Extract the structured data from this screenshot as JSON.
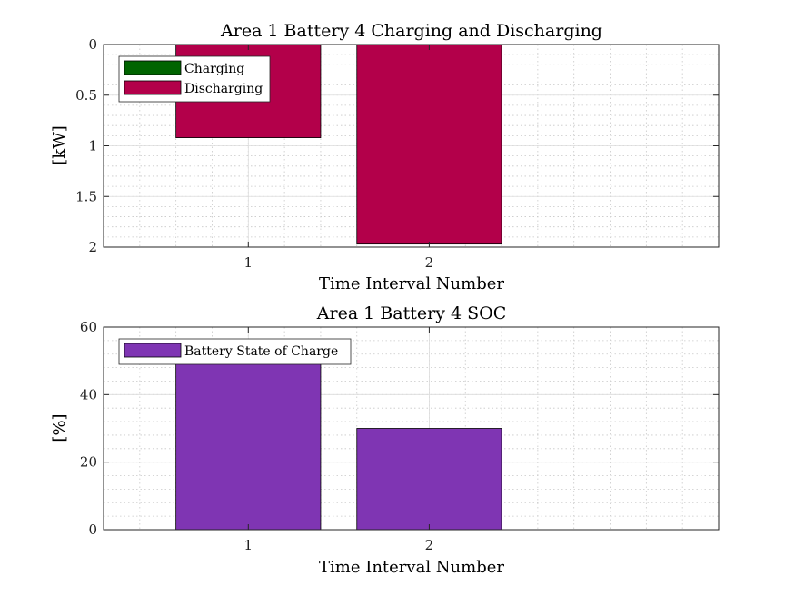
{
  "chart_data": [
    {
      "type": "bar",
      "title": "Area 1 Battery 4 Charging and Discharging",
      "xlabel": "Time Interval Number",
      "ylabel": "[kW]",
      "categories": [
        "1",
        "2"
      ],
      "ylim": [
        0,
        2
      ],
      "y_reversed": true,
      "yticks": [
        "0",
        "0.5",
        "1",
        "1.5",
        "2"
      ],
      "grid": true,
      "minor_grid": true,
      "legend_position": "top-left",
      "series": [
        {
          "name": "Charging",
          "color": "#006400",
          "values": [
            0,
            0
          ]
        },
        {
          "name": "Discharging",
          "color": "#b3004a",
          "values": [
            0.92,
            1.97
          ]
        }
      ]
    },
    {
      "type": "bar",
      "title": "Area 1 Battery 4 SOC",
      "xlabel": "Time Interval Number",
      "ylabel": "[%]",
      "categories": [
        "1",
        "2"
      ],
      "ylim": [
        0,
        60
      ],
      "y_reversed": false,
      "yticks": [
        "0",
        "20",
        "40",
        "60"
      ],
      "grid": true,
      "minor_grid": true,
      "legend_position": "top-left",
      "series": [
        {
          "name": "Battery State of Charge",
          "color": "#7f35b3",
          "values": [
            52,
            30
          ]
        }
      ]
    }
  ]
}
